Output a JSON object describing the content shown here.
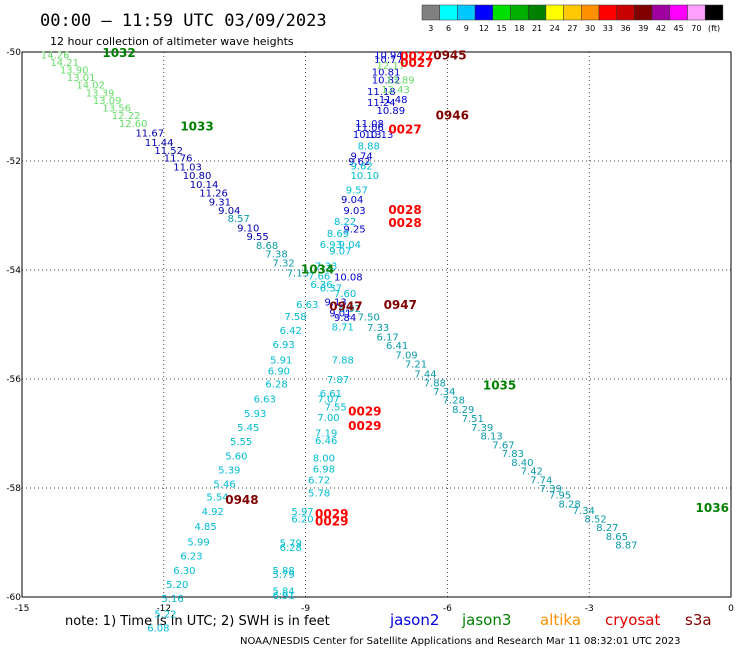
{
  "header": {
    "title": "00:00 – 11:59 UTC 03/09/2023",
    "subtitle": "12 hour collection of altimeter wave heights"
  },
  "colorbar": {
    "labels": [
      "3",
      "6",
      "9",
      "12",
      "15",
      "18",
      "21",
      "24",
      "27",
      "30",
      "33",
      "36",
      "39",
      "42",
      "45",
      "70",
      "(ft)"
    ],
    "colors": [
      "#808080",
      "#00ffff",
      "#00c8ff",
      "#0000ff",
      "#00e000",
      "#00b000",
      "#008000",
      "#ffff00",
      "#ffc800",
      "#ff9000",
      "#ff0000",
      "#c80000",
      "#800000",
      "#a000a0",
      "#ff00ff",
      "#ffa0ff",
      "#000000"
    ]
  },
  "footer": {
    "note": "note:  1) Time is in UTC;  2) SWH is in feet",
    "sats": [
      {
        "name": "jason2",
        "color": "#0000e0"
      },
      {
        "name": "jason3",
        "color": "#008000"
      },
      {
        "name": "altika",
        "color": "#ff9000"
      },
      {
        "name": "cryosat",
        "color": "#e00000"
      },
      {
        "name": "s3a",
        "color": "#800000"
      }
    ],
    "credit": "NOAA/NESDIS Center for Satellite Applications and Research    Mar 11 08:32:01 UTC 2023"
  },
  "chart_data": {
    "type": "scatter",
    "xlim": [
      -15,
      0
    ],
    "ylim": [
      -60,
      -50
    ],
    "xticks": [
      -15,
      -12,
      -9,
      -6,
      -3,
      0
    ],
    "yticks": [
      -50,
      -52,
      -54,
      -56,
      -58,
      -60
    ],
    "xtick_labels": [
      "-15",
      "-12",
      "-9",
      "-6",
      "-3",
      "0"
    ],
    "ytick_labels": [
      "-50",
      "-52",
      "-54",
      "-56",
      "-58",
      "-60"
    ],
    "grid": true,
    "points": [
      {
        "x": -14.6,
        "y": -50.05,
        "v": "14.26",
        "c": "#66dd66"
      },
      {
        "x": -14.4,
        "y": -50.18,
        "v": "14.21",
        "c": "#66dd66"
      },
      {
        "x": -14.2,
        "y": -50.32,
        "v": "13.90",
        "c": "#66dd66"
      },
      {
        "x": -14.05,
        "y": -50.46,
        "v": "13.01",
        "c": "#66dd66"
      },
      {
        "x": -13.85,
        "y": -50.6,
        "v": "14.02",
        "c": "#66dd66"
      },
      {
        "x": -13.65,
        "y": -50.74,
        "v": "13.39",
        "c": "#66dd66"
      },
      {
        "x": -13.5,
        "y": -50.88,
        "v": "13.09",
        "c": "#66dd66"
      },
      {
        "x": -13.3,
        "y": -51.02,
        "v": "13.56",
        "c": "#66dd66"
      },
      {
        "x": -13.1,
        "y": -51.16,
        "v": "12.22",
        "c": "#66dd66"
      },
      {
        "x": -12.95,
        "y": -51.3,
        "v": "12.60",
        "c": "#66dd66"
      },
      {
        "x": -12.6,
        "y": -51.48,
        "v": "11.67",
        "c": "#0000aa"
      },
      {
        "x": -12.4,
        "y": -51.65,
        "v": "11.44",
        "c": "#0000aa"
      },
      {
        "x": -12.2,
        "y": -51.8,
        "v": "11.52",
        "c": "#0000aa"
      },
      {
        "x": -12.0,
        "y": -51.94,
        "v": "11.76",
        "c": "#0000aa"
      },
      {
        "x": -11.8,
        "y": -52.1,
        "v": "11.03",
        "c": "#0000aa"
      },
      {
        "x": -11.6,
        "y": -52.26,
        "v": "10.80",
        "c": "#0000aa"
      },
      {
        "x": -11.45,
        "y": -52.42,
        "v": "10.14",
        "c": "#0000aa"
      },
      {
        "x": -11.25,
        "y": -52.58,
        "v": "11.26",
        "c": "#0000aa"
      },
      {
        "x": -11.05,
        "y": -52.74,
        "v": "9.31",
        "c": "#0000aa"
      },
      {
        "x": -10.85,
        "y": -52.9,
        "v": "9.04",
        "c": "#0000aa"
      },
      {
        "x": -10.65,
        "y": -53.05,
        "v": "8.57",
        "c": "#0a9aaa"
      },
      {
        "x": -10.45,
        "y": -53.22,
        "v": "9.10",
        "c": "#0000aa"
      },
      {
        "x": -10.25,
        "y": -53.38,
        "v": "9.55",
        "c": "#0000aa"
      },
      {
        "x": -10.05,
        "y": -53.54,
        "v": "8.68",
        "c": "#0a9aaa"
      },
      {
        "x": -9.85,
        "y": -53.7,
        "v": "7.38",
        "c": "#0a9aaa"
      },
      {
        "x": -9.7,
        "y": -53.86,
        "v": "7.32",
        "c": "#0a9aaa"
      },
      {
        "x": -9.4,
        "y": -54.05,
        "v": "7.13",
        "c": "#0a9aaa"
      },
      {
        "x": -8.3,
        "y": -54.7,
        "v": "6.92",
        "c": "#0a9aaa"
      },
      {
        "x": -7.9,
        "y": -54.85,
        "v": "7.50",
        "c": "#0a9aaa"
      },
      {
        "x": -7.7,
        "y": -55.05,
        "v": "7.33",
        "c": "#0a9aaa"
      },
      {
        "x": -7.5,
        "y": -55.22,
        "v": "6.17",
        "c": "#0a9aaa"
      },
      {
        "x": -7.3,
        "y": -55.38,
        "v": "6.41",
        "c": "#0a9aaa"
      },
      {
        "x": -7.1,
        "y": -55.55,
        "v": "7.09",
        "c": "#0a9aaa"
      },
      {
        "x": -6.9,
        "y": -55.72,
        "v": "7.21",
        "c": "#0a9aaa"
      },
      {
        "x": -6.7,
        "y": -55.9,
        "v": "7.44",
        "c": "#0a9aaa"
      },
      {
        "x": -6.5,
        "y": -56.06,
        "v": "7.88",
        "c": "#0a9aaa"
      },
      {
        "x": -6.3,
        "y": -56.22,
        "v": "7.34",
        "c": "#0a9aaa"
      },
      {
        "x": -6.1,
        "y": -56.38,
        "v": "7.28",
        "c": "#0a9aaa"
      },
      {
        "x": -5.9,
        "y": -56.55,
        "v": "8.29",
        "c": "#0a9aaa"
      },
      {
        "x": -5.7,
        "y": -56.72,
        "v": "7.51",
        "c": "#0a9aaa"
      },
      {
        "x": -5.5,
        "y": -56.88,
        "v": "7.39",
        "c": "#0a9aaa"
      },
      {
        "x": -5.3,
        "y": -57.04,
        "v": "8.13",
        "c": "#0a9aaa"
      },
      {
        "x": -5.05,
        "y": -57.2,
        "v": "7.67",
        "c": "#0a9aaa"
      },
      {
        "x": -4.85,
        "y": -57.36,
        "v": "7.83",
        "c": "#0a9aaa"
      },
      {
        "x": -4.65,
        "y": -57.52,
        "v": "8.40",
        "c": "#0a9aaa"
      },
      {
        "x": -4.45,
        "y": -57.68,
        "v": "7.42",
        "c": "#0a9aaa"
      },
      {
        "x": -4.25,
        "y": -57.84,
        "v": "7.74",
        "c": "#0a9aaa"
      },
      {
        "x": -4.05,
        "y": -58.0,
        "v": "7.39",
        "c": "#0a9aaa"
      },
      {
        "x": -3.85,
        "y": -58.12,
        "v": "7.95",
        "c": "#0a9aaa"
      },
      {
        "x": -3.65,
        "y": -58.28,
        "v": "8.28",
        "c": "#0a9aaa"
      },
      {
        "x": -3.35,
        "y": -58.4,
        "v": "7.34",
        "c": "#0a9aaa"
      },
      {
        "x": -3.1,
        "y": -58.56,
        "v": "8.52",
        "c": "#0a9aaa"
      },
      {
        "x": -2.85,
        "y": -58.72,
        "v": "8.27",
        "c": "#0a9aaa"
      },
      {
        "x": -2.65,
        "y": -58.88,
        "v": "8.65",
        "c": "#0a9aaa"
      },
      {
        "x": -2.45,
        "y": -59.04,
        "v": "8.87",
        "c": "#0a9aaa"
      },
      {
        "x": -7.55,
        "y": -50.05,
        "v": "10.94",
        "c": "#0000cc"
      },
      {
        "x": -7.55,
        "y": -50.13,
        "v": "10.77",
        "c": "#0000cc"
      },
      {
        "x": -7.6,
        "y": -50.36,
        "v": "10.81",
        "c": "#0000cc"
      },
      {
        "x": -7.6,
        "y": -50.5,
        "v": "10.82",
        "c": "#0000cc"
      },
      {
        "x": -7.7,
        "y": -50.72,
        "v": "11.18",
        "c": "#0000cc"
      },
      {
        "x": -7.7,
        "y": -50.92,
        "v": "11.24",
        "c": "#0000cc"
      },
      {
        "x": -7.45,
        "y": -50.86,
        "v": "11.48",
        "c": "#0000cc"
      },
      {
        "x": -7.5,
        "y": -51.06,
        "v": "10.89",
        "c": "#0000cc"
      },
      {
        "x": -7.95,
        "y": -51.3,
        "v": "11.08",
        "c": "#0000cc"
      },
      {
        "x": -7.95,
        "y": -51.38,
        "v": "11.06",
        "c": "#0000cc"
      },
      {
        "x": -8.0,
        "y": -51.5,
        "v": "10.13",
        "c": "#0000cc"
      },
      {
        "x": -7.75,
        "y": -51.5,
        "v": "10.13",
        "c": "#0000cc"
      },
      {
        "x": -7.9,
        "y": -51.72,
        "v": "8.88",
        "c": "#00bcd4"
      },
      {
        "x": -8.05,
        "y": -51.9,
        "v": "9.74",
        "c": "#0000cc"
      },
      {
        "x": -8.1,
        "y": -52.0,
        "v": "9.62",
        "c": "#0000cc"
      },
      {
        "x": -8.05,
        "y": -52.08,
        "v": "9.62",
        "c": "#00bcd4"
      },
      {
        "x": -8.05,
        "y": -52.26,
        "v": "10.10",
        "c": "#00bcd4"
      },
      {
        "x": -8.15,
        "y": -52.52,
        "v": "9.57",
        "c": "#00bcd4"
      },
      {
        "x": -8.25,
        "y": -52.7,
        "v": "9.04",
        "c": "#0000cc"
      },
      {
        "x": -8.2,
        "y": -52.9,
        "v": "9.03",
        "c": "#0000cc"
      },
      {
        "x": -8.4,
        "y": -53.1,
        "v": "8.22",
        "c": "#00bcd4"
      },
      {
        "x": -8.2,
        "y": -53.24,
        "v": "9.25",
        "c": "#0000cc"
      },
      {
        "x": -8.55,
        "y": -53.32,
        "v": "8.69",
        "c": "#00bcd4"
      },
      {
        "x": -8.3,
        "y": -53.52,
        "v": "9.04",
        "c": "#00bcd4"
      },
      {
        "x": -8.7,
        "y": -53.52,
        "v": "6.93",
        "c": "#00bcd4"
      },
      {
        "x": -8.5,
        "y": -53.64,
        "v": "9.07",
        "c": "#00bcd4"
      },
      {
        "x": -8.8,
        "y": -53.92,
        "v": "7.33",
        "c": "#00bcd4"
      },
      {
        "x": -8.95,
        "y": -54.1,
        "v": "7.66",
        "c": "#00bcd4"
      },
      {
        "x": -8.4,
        "y": -54.12,
        "v": "10.08",
        "c": "#0000cc"
      },
      {
        "x": -8.9,
        "y": -54.26,
        "v": "6.36",
        "c": "#00bcd4"
      },
      {
        "x": -8.7,
        "y": -54.32,
        "v": "6.37",
        "c": "#00bcd4"
      },
      {
        "x": -8.4,
        "y": -54.42,
        "v": "7.60",
        "c": "#00bcd4"
      },
      {
        "x": -8.6,
        "y": -54.58,
        "v": "9.13",
        "c": "#0000cc"
      },
      {
        "x": -8.5,
        "y": -54.78,
        "v": "9.01",
        "c": "#0000cc"
      },
      {
        "x": -8.4,
        "y": -54.86,
        "v": "9.84",
        "c": "#0000cc"
      },
      {
        "x": -8.45,
        "y": -55.04,
        "v": "8.71",
        "c": "#00bcd4"
      },
      {
        "x": -9.2,
        "y": -54.62,
        "v": "6.63",
        "c": "#00bcd4"
      },
      {
        "x": -9.45,
        "y": -54.84,
        "v": "7.58",
        "c": "#00bcd4"
      },
      {
        "x": -9.55,
        "y": -55.1,
        "v": "6.42",
        "c": "#00bcd4"
      },
      {
        "x": -9.7,
        "y": -55.36,
        "v": "6.93",
        "c": "#00bcd4"
      },
      {
        "x": -9.75,
        "y": -55.64,
        "v": "5.91",
        "c": "#00bcd4"
      },
      {
        "x": -9.8,
        "y": -55.84,
        "v": "6.90",
        "c": "#00bcd4"
      },
      {
        "x": -9.85,
        "y": -56.08,
        "v": "6.28",
        "c": "#00bcd4"
      },
      {
        "x": -10.1,
        "y": -56.36,
        "v": "6.63",
        "c": "#00bcd4"
      },
      {
        "x": -10.3,
        "y": -56.62,
        "v": "5.93",
        "c": "#00bcd4"
      },
      {
        "x": -10.45,
        "y": -56.88,
        "v": "5.45",
        "c": "#00bcd4"
      },
      {
        "x": -10.6,
        "y": -57.14,
        "v": "5.55",
        "c": "#00bcd4"
      },
      {
        "x": -10.7,
        "y": -57.4,
        "v": "5.60",
        "c": "#00bcd4"
      },
      {
        "x": -10.85,
        "y": -57.66,
        "v": "5.39",
        "c": "#00bcd4"
      },
      {
        "x": -10.95,
        "y": -57.92,
        "v": "5.46",
        "c": "#00bcd4"
      },
      {
        "x": -11.1,
        "y": -58.16,
        "v": "5.54",
        "c": "#00bcd4"
      },
      {
        "x": -11.2,
        "y": -58.42,
        "v": "4.92",
        "c": "#00bcd4"
      },
      {
        "x": -11.35,
        "y": -58.7,
        "v": "4.85",
        "c": "#00bcd4"
      },
      {
        "x": -11.5,
        "y": -58.98,
        "v": "5.99",
        "c": "#00bcd4"
      },
      {
        "x": -11.65,
        "y": -59.24,
        "v": "6.23",
        "c": "#00bcd4"
      },
      {
        "x": -11.8,
        "y": -59.5,
        "v": "6.30",
        "c": "#00bcd4"
      },
      {
        "x": -11.95,
        "y": -59.76,
        "v": "5.20",
        "c": "#00bcd4"
      },
      {
        "x": -12.05,
        "y": -60.02,
        "v": "5.16",
        "c": "#00bcd4"
      },
      {
        "x": -12.2,
        "y": -60.3,
        "v": "5.22",
        "c": "#00bcd4"
      },
      {
        "x": -12.35,
        "y": -60.56,
        "v": "6.08",
        "c": "#00bcd4"
      },
      {
        "x": -8.45,
        "y": -55.64,
        "v": "7.88",
        "c": "#00bcd4"
      },
      {
        "x": -8.55,
        "y": -56.0,
        "v": "7.87",
        "c": "#00bcd4"
      },
      {
        "x": -8.7,
        "y": -56.26,
        "v": "6.61",
        "c": "#00bcd4"
      },
      {
        "x": -8.75,
        "y": -56.36,
        "v": "7.07",
        "c": "#00bcd4"
      },
      {
        "x": -8.6,
        "y": -56.5,
        "v": "7.55",
        "c": "#00bcd4"
      },
      {
        "x": -8.75,
        "y": -56.7,
        "v": "7.00",
        "c": "#00bcd4"
      },
      {
        "x": -8.8,
        "y": -56.98,
        "v": "7.19",
        "c": "#00bcd4"
      },
      {
        "x": -8.8,
        "y": -57.12,
        "v": "6.46",
        "c": "#00bcd4"
      },
      {
        "x": -8.85,
        "y": -57.44,
        "v": "8.00",
        "c": "#00bcd4"
      },
      {
        "x": -8.85,
        "y": -57.64,
        "v": "6.98",
        "c": "#00bcd4"
      },
      {
        "x": -8.95,
        "y": -57.84,
        "v": "6.72",
        "c": "#00bcd4"
      },
      {
        "x": -8.95,
        "y": -58.08,
        "v": "5.78",
        "c": "#00bcd4"
      },
      {
        "x": -9.3,
        "y": -58.42,
        "v": "5.97",
        "c": "#00bcd4"
      },
      {
        "x": -9.3,
        "y": -58.56,
        "v": "6.20",
        "c": "#00bcd4"
      },
      {
        "x": -9.55,
        "y": -59.0,
        "v": "5.79",
        "c": "#00bcd4"
      },
      {
        "x": -9.55,
        "y": -59.08,
        "v": "6.28",
        "c": "#00bcd4"
      },
      {
        "x": -9.7,
        "y": -59.5,
        "v": "5.88",
        "c": "#00bcd4"
      },
      {
        "x": -9.7,
        "y": -59.58,
        "v": "5.79",
        "c": "#00bcd4"
      },
      {
        "x": -9.7,
        "y": -59.88,
        "v": "5.84",
        "c": "#00bcd4"
      },
      {
        "x": -9.7,
        "y": -59.96,
        "v": "6.91",
        "c": "#00bcd4"
      },
      {
        "x": -7.3,
        "y": -50.5,
        "v": "13.89",
        "c": "#66dd66"
      },
      {
        "x": -7.4,
        "y": -50.68,
        "v": "12.43",
        "c": "#66dd66"
      },
      {
        "x": -7.5,
        "y": -50.24,
        "v": "12.17",
        "c": "#66dd66"
      }
    ],
    "time_labels": [
      {
        "x": -13.3,
        "y": -50.0,
        "t": "1032",
        "c": "#008000"
      },
      {
        "x": -11.65,
        "y": -51.35,
        "t": "1033",
        "c": "#008000"
      },
      {
        "x": -9.1,
        "y": -53.97,
        "t": "1034",
        "c": "#008000"
      },
      {
        "x": -5.25,
        "y": -56.1,
        "t": "1035",
        "c": "#008000"
      },
      {
        "x": -0.75,
        "y": -58.35,
        "t": "1036",
        "c": "#008000"
      },
      {
        "x": -6.3,
        "y": -50.05,
        "t": "0945",
        "c": "#800000"
      },
      {
        "x": -6.25,
        "y": -51.15,
        "t": "0946",
        "c": "#800000"
      },
      {
        "x": -8.5,
        "y": -54.65,
        "t": "0947",
        "c": "#800000"
      },
      {
        "x": -10.7,
        "y": -58.2,
        "t": "0948",
        "c": "#800000"
      },
      {
        "x": -7.0,
        "y": -50.06,
        "t": "0027",
        "c": "#ff0000"
      },
      {
        "x": -7.0,
        "y": -50.18,
        "t": "0027",
        "c": "#ff0000"
      },
      {
        "x": -7.25,
        "y": -51.4,
        "t": "0027",
        "c": "#ff0000"
      },
      {
        "x": -7.25,
        "y": -52.88,
        "t": "0028",
        "c": "#ff0000"
      },
      {
        "x": -7.25,
        "y": -53.12,
        "t": "0028",
        "c": "#ff0000"
      },
      {
        "x": -8.1,
        "y": -56.58,
        "t": "0029",
        "c": "#ff0000"
      },
      {
        "x": -8.1,
        "y": -56.84,
        "t": "0029",
        "c": "#ff0000"
      },
      {
        "x": -8.8,
        "y": -58.46,
        "t": "0029",
        "c": "#ff0000"
      },
      {
        "x": -8.8,
        "y": -58.6,
        "t": "0029",
        "c": "#ff0000"
      },
      {
        "x": -7.35,
        "y": -54.62,
        "t": "0947",
        "c": "#800000"
      }
    ]
  }
}
